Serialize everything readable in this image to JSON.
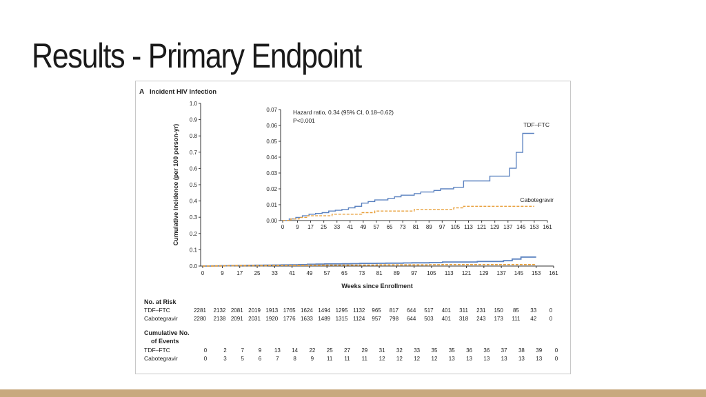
{
  "slide": {
    "title": "Results - Primary Endpoint"
  },
  "figure": {
    "panel_letter": "A",
    "panel_title": "Incident HIV Infection",
    "ylabel": "Cumulative Incidence (per 100 person-yr)",
    "xlabel": "Weeks since Enrollment",
    "hazard_ratio": "Hazard ratio, 0.34 (95% CI, 0.18–0.62)",
    "p_value": "P<0.001",
    "risk_header": "No. at Risk",
    "events_header_line1": "Cumulative No.",
    "events_header_line2": "of Events"
  },
  "colors": {
    "tdf_ftc": "#5b82c0",
    "cabotegravir": "#e8a03c",
    "bottom_bar": "#c8a97e"
  },
  "chart_data": {
    "type": "line",
    "step": true,
    "x_ticks": [
      0,
      9,
      17,
      25,
      33,
      41,
      49,
      57,
      65,
      73,
      81,
      89,
      97,
      105,
      113,
      121,
      129,
      137,
      145,
      153,
      161
    ],
    "xlim": [
      0,
      161
    ],
    "main": {
      "ylim": [
        0,
        1.0
      ],
      "y_ticks": [
        "0.0",
        "0.1",
        "0.2",
        "0.3",
        "0.4",
        "0.5",
        "0.6",
        "0.7",
        "0.8",
        "0.9",
        "1.0"
      ]
    },
    "inset": {
      "ylim": [
        0,
        0.07
      ],
      "y_ticks": [
        "0.00",
        "0.01",
        "0.02",
        "0.03",
        "0.04",
        "0.05",
        "0.06",
        "0.07"
      ]
    },
    "series": [
      {
        "name": "TDF–FTC",
        "style": "solid",
        "x": [
          0,
          4,
          8,
          12,
          16,
          20,
          24,
          28,
          32,
          36,
          40,
          44,
          48,
          52,
          56,
          60,
          64,
          68,
          72,
          76,
          80,
          84,
          88,
          92,
          96,
          100,
          104,
          110,
          118,
          126,
          134,
          138,
          142,
          146,
          153
        ],
        "y": [
          0,
          0.001,
          0.002,
          0.003,
          0.004,
          0.0045,
          0.005,
          0.006,
          0.0065,
          0.007,
          0.008,
          0.009,
          0.011,
          0.012,
          0.013,
          0.013,
          0.014,
          0.015,
          0.016,
          0.016,
          0.017,
          0.018,
          0.018,
          0.019,
          0.02,
          0.02,
          0.021,
          0.025,
          0.025,
          0.028,
          0.028,
          0.033,
          0.043,
          0.055,
          0.055
        ]
      },
      {
        "name": "Cabotegravir",
        "style": "dashed",
        "x": [
          0,
          5,
          10,
          15,
          20,
          30,
          40,
          48,
          56,
          70,
          80,
          96,
          104,
          110,
          118,
          130,
          153
        ],
        "y": [
          0,
          0.001,
          0.002,
          0.003,
          0.003,
          0.004,
          0.004,
          0.005,
          0.006,
          0.006,
          0.007,
          0.007,
          0.008,
          0.009,
          0.009,
          0.009,
          0.009
        ]
      }
    ],
    "at_risk": {
      "TDF–FTC": [
        2281,
        2132,
        2081,
        2019,
        1913,
        1765,
        1624,
        1494,
        1295,
        1132,
        965,
        817,
        644,
        517,
        401,
        311,
        231,
        150,
        85,
        33,
        0
      ],
      "Cabotegravir": [
        2280,
        2138,
        2091,
        2031,
        1920,
        1776,
        1633,
        1489,
        1315,
        1124,
        957,
        798,
        644,
        503,
        401,
        318,
        243,
        173,
        111,
        42,
        0
      ]
    },
    "cumulative_events": {
      "TDF–FTC": [
        0,
        2,
        7,
        9,
        13,
        14,
        22,
        25,
        27,
        29,
        31,
        32,
        33,
        35,
        35,
        36,
        36,
        37,
        38,
        39,
        0
      ],
      "Cabotegravir": [
        0,
        3,
        5,
        6,
        7,
        8,
        9,
        11,
        11,
        11,
        12,
        12,
        12,
        12,
        13,
        13,
        13,
        13,
        13,
        13,
        0
      ]
    }
  }
}
